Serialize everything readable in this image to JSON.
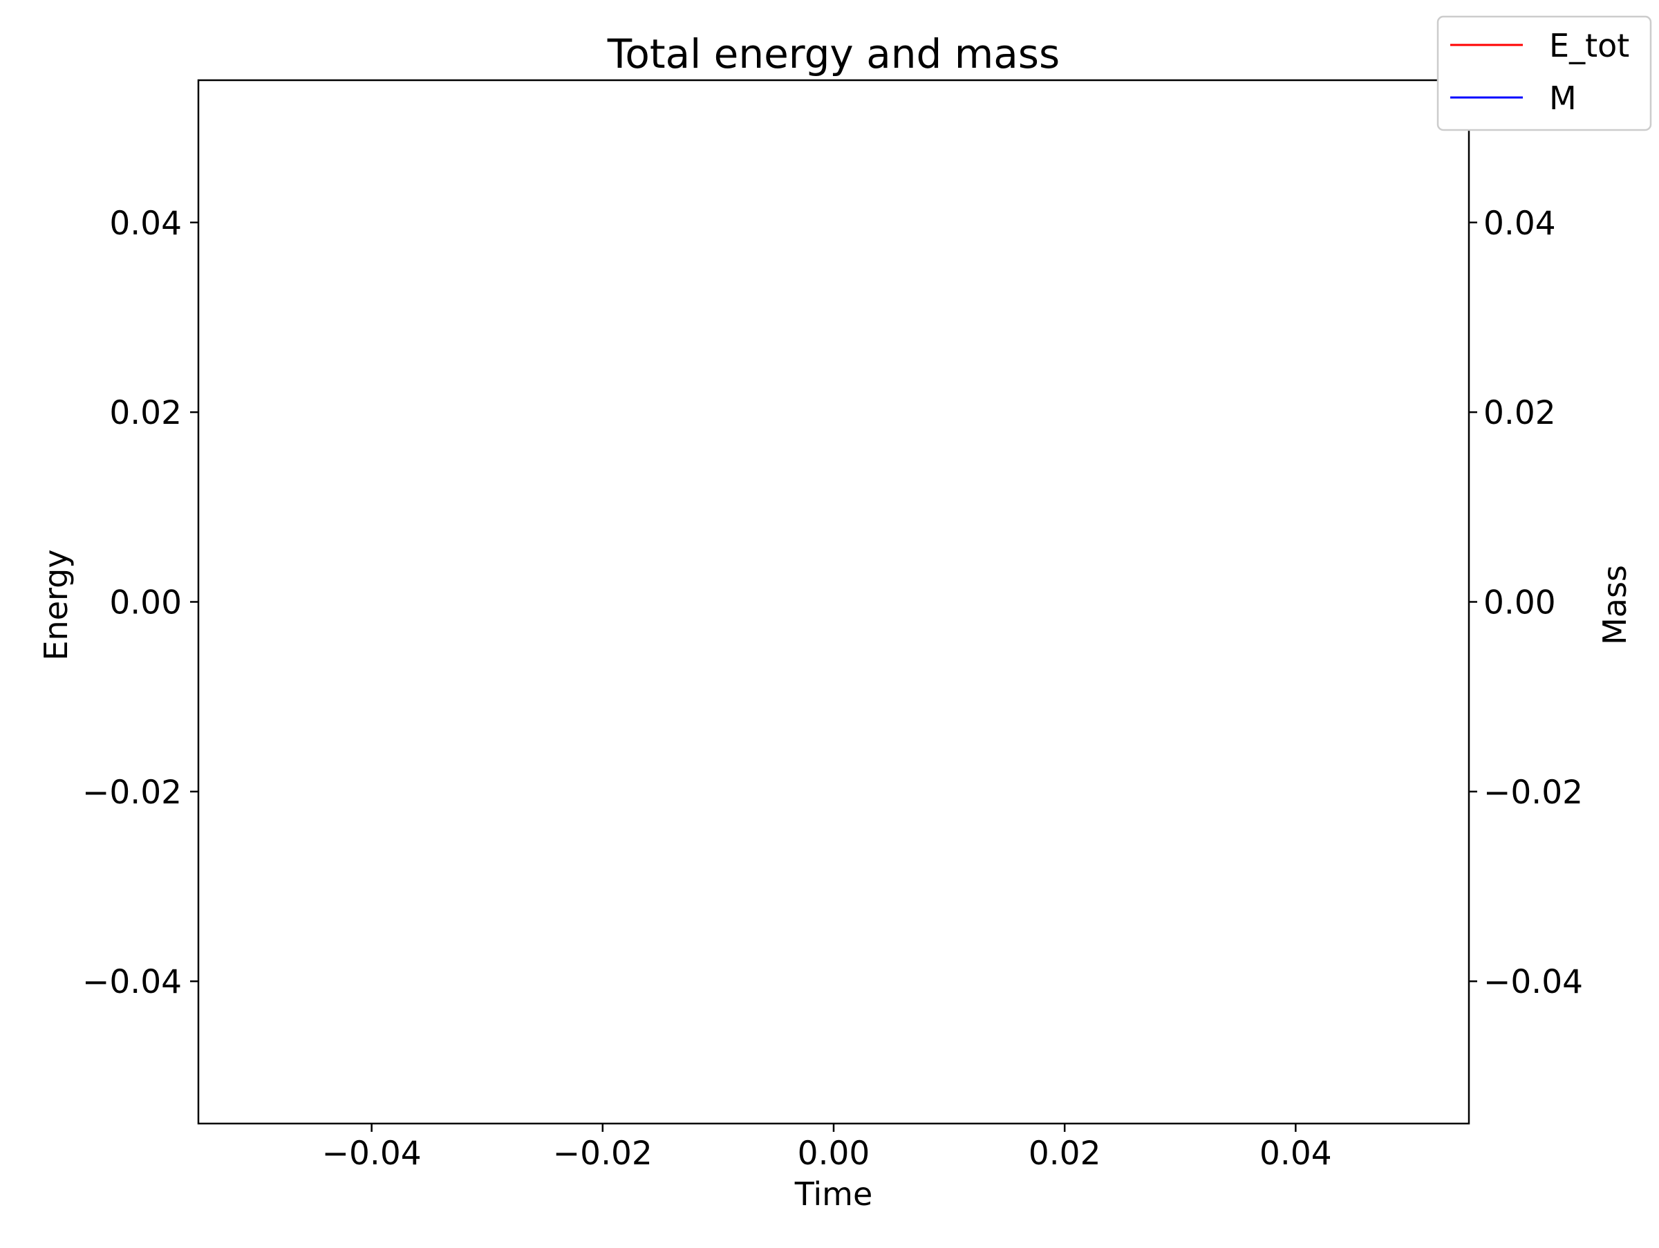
{
  "chart_data": {
    "type": "line",
    "title": "Total energy and mass",
    "xlabel": "Time",
    "ylabel_left": "Energy",
    "ylabel_right": "Mass",
    "xlim": [
      -0.055,
      0.055
    ],
    "ylim_left": [
      -0.055,
      0.055
    ],
    "ylim_right": [
      -0.055,
      0.055
    ],
    "x_ticks": [
      {
        "value": -0.04,
        "label": "−0.04"
      },
      {
        "value": -0.02,
        "label": "−0.02"
      },
      {
        "value": 0.0,
        "label": "0.00"
      },
      {
        "value": 0.02,
        "label": "0.02"
      },
      {
        "value": 0.04,
        "label": "0.04"
      }
    ],
    "y_left_ticks": [
      {
        "value": -0.04,
        "label": "−0.04"
      },
      {
        "value": -0.02,
        "label": "−0.02"
      },
      {
        "value": 0.0,
        "label": "0.00"
      },
      {
        "value": 0.02,
        "label": "0.02"
      },
      {
        "value": 0.04,
        "label": "0.04"
      }
    ],
    "y_right_ticks": [
      {
        "value": -0.04,
        "label": "−0.04"
      },
      {
        "value": -0.02,
        "label": "−0.02"
      },
      {
        "value": 0.0,
        "label": "0.00"
      },
      {
        "value": 0.02,
        "label": "0.02"
      },
      {
        "value": 0.04,
        "label": "0.04"
      }
    ],
    "grid": false,
    "legend_position": "top-right",
    "series": [
      {
        "name": "E_tot",
        "color": "#ff0000",
        "axis": "left",
        "x": [],
        "y": []
      },
      {
        "name": "M",
        "color": "#0000ff",
        "axis": "right",
        "x": [],
        "y": []
      }
    ]
  }
}
